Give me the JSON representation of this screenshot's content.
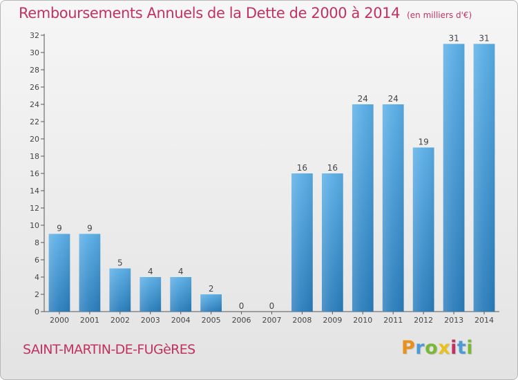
{
  "header": {
    "title": "Remboursements Annuels de la Dette de 2000 à 2014",
    "unit": "(en milliers d'€)"
  },
  "footer": {
    "commune": "SAINT-MARTIN-DE-FUGèRES",
    "logo_text": "Proxiti",
    "logo_colors": [
      "#e8901c",
      "#4c9ad6",
      "#7ab734",
      "#e8c21c",
      "#c0325f",
      "#4c9ad6",
      "#7ab734"
    ]
  },
  "chart_data": {
    "type": "bar",
    "title": "Remboursements Annuels de la Dette de 2000 à 2014",
    "xlabel": "",
    "ylabel": "",
    "categories": [
      "2000",
      "2001",
      "2002",
      "2003",
      "2004",
      "2005",
      "2006",
      "2007",
      "2008",
      "2009",
      "2010",
      "2011",
      "2012",
      "2013",
      "2014"
    ],
    "values": [
      9,
      9,
      5,
      4,
      4,
      2,
      0,
      0,
      16,
      16,
      24,
      24,
      19,
      31,
      31
    ],
    "ylim": [
      0,
      32
    ],
    "yticks": [
      0,
      2,
      4,
      6,
      8,
      10,
      12,
      14,
      16,
      18,
      20,
      22,
      24,
      26,
      28,
      30,
      32
    ],
    "grid": false,
    "legend": "none",
    "colors": {
      "bar_top": "#5aaee6",
      "bar_bottom": "#2a7dbc",
      "axis": "#555555",
      "text": "#444444"
    }
  }
}
